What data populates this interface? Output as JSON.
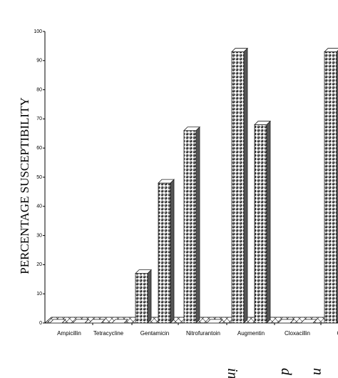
{
  "chart_data": {
    "type": "bar",
    "ylabel": "PERCENTAGE SUSCEPTIBILITY",
    "categories": [
      "Ampicillin",
      "Tetracycline",
      "Gentamicin",
      "Nitrofurantoin",
      "Augmentin",
      "Cloxacillin",
      "Chlor"
    ],
    "series": [
      {
        "color": "#222222",
        "values": [
          0,
          0,
          17,
          66,
          93,
          0,
          93
        ]
      },
      {
        "color": "#222222",
        "values": [
          0,
          0,
          48,
          0,
          68,
          0,
          null
        ]
      }
    ],
    "ylim": [
      0,
      100
    ],
    "yticks": [
      0,
      10,
      20,
      30,
      40,
      50,
      60,
      70,
      80,
      90,
      100
    ],
    "annotations": [
      "in",
      "d",
      "n"
    ]
  }
}
